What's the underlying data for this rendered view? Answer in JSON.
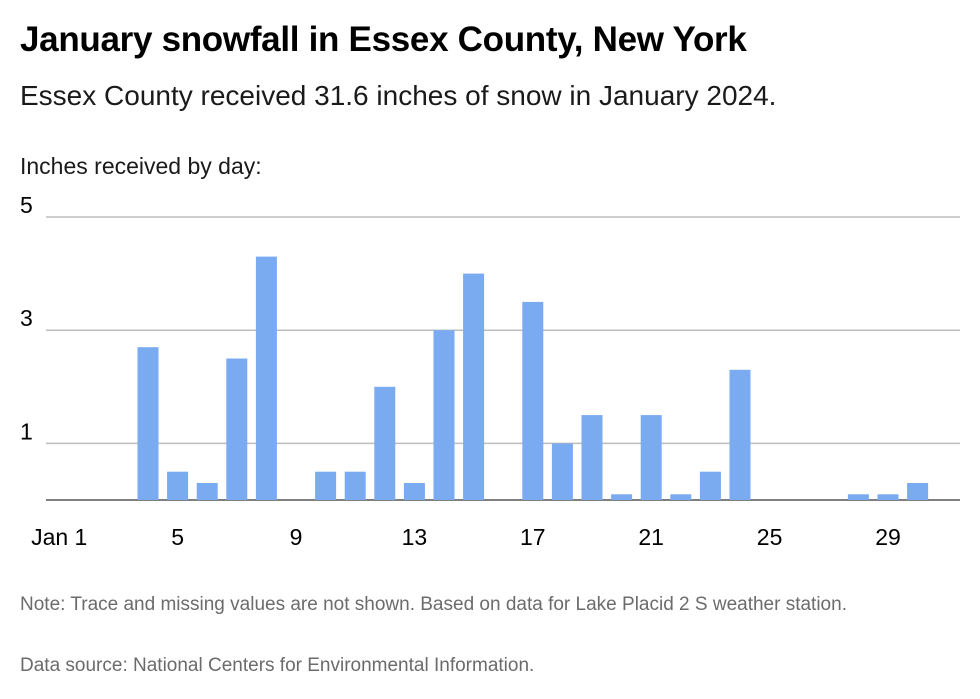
{
  "header": {
    "title": "January snowfall in Essex County, New York",
    "subtitle": "Essex County received 31.6 inches of snow in January 2024."
  },
  "footer": {
    "note": "Note: Trace and missing values are not shown. Based on data for Lake Placid 2 S weather station.",
    "source": "Data source: National Centers for Environmental Information."
  },
  "chart_data": {
    "type": "bar",
    "title": "January snowfall in Essex County, New York",
    "ylabel": "Inches received by day:",
    "xlabel": "",
    "x": [
      1,
      2,
      3,
      4,
      5,
      6,
      7,
      8,
      9,
      10,
      11,
      12,
      13,
      14,
      15,
      16,
      17,
      18,
      19,
      20,
      21,
      22,
      23,
      24,
      25,
      26,
      27,
      28,
      29,
      30
    ],
    "values": [
      0,
      0,
      0,
      2.7,
      0.5,
      0.3,
      2.5,
      4.3,
      0,
      0.5,
      0.5,
      2.0,
      0.3,
      3.0,
      4.0,
      0,
      3.5,
      1.0,
      1.5,
      0.1,
      1.5,
      0.1,
      0.5,
      2.3,
      0,
      0,
      0,
      0.1,
      0.1,
      0.3
    ],
    "x_tick_labels": [
      "Jan 1",
      "5",
      "9",
      "13",
      "17",
      "21",
      "25",
      "29"
    ],
    "x_tick_days": [
      1,
      5,
      9,
      13,
      17,
      21,
      25,
      29
    ],
    "y_tick_labels": [
      "1",
      "3",
      "5"
    ],
    "y_tick_values": [
      1,
      3,
      5
    ],
    "ylim": [
      0,
      5
    ],
    "grid": true,
    "bar_color": "#7aaaf0",
    "grid_color": "#bdbdbd"
  }
}
